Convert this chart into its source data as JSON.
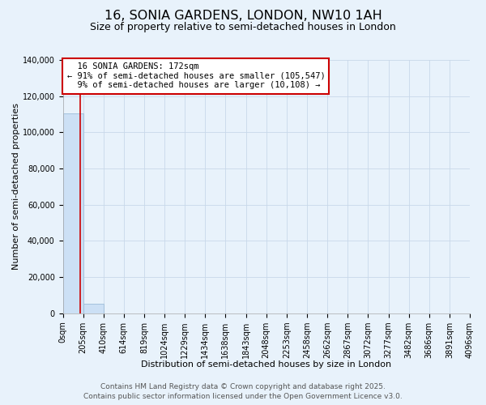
{
  "title": "16, SONIA GARDENS, LONDON, NW10 1AH",
  "subtitle": "Size of property relative to semi-detached houses in London",
  "xlabel": "Distribution of semi-detached houses by size in London",
  "ylabel": "Number of semi-detached properties",
  "annotation_title": "16 SONIA GARDENS: 172sqm",
  "annotation_line1": "← 91% of semi-detached houses are smaller (105,547)",
  "annotation_line2": "9% of semi-detached houses are larger (10,108) →",
  "property_size_sqm": 172,
  "bin_edges": [
    0,
    205,
    410,
    614,
    819,
    1024,
    1229,
    1434,
    1638,
    1843,
    2048,
    2253,
    2458,
    2662,
    2867,
    3072,
    3277,
    3482,
    3686,
    3891,
    4096
  ],
  "bin_counts": [
    110500,
    5200,
    0,
    0,
    0,
    0,
    0,
    0,
    0,
    0,
    0,
    0,
    0,
    0,
    0,
    0,
    0,
    0,
    0,
    0
  ],
  "bar_color": "#cce0f5",
  "bar_edge_color": "#9bbcd8",
  "red_line_color": "#cc0000",
  "annotation_box_color": "#ffffff",
  "annotation_box_edge": "#cc0000",
  "grid_color": "#c8d8ea",
  "background_color": "#e8f2fb",
  "footer_line1": "Contains HM Land Registry data © Crown copyright and database right 2025.",
  "footer_line2": "Contains public sector information licensed under the Open Government Licence v3.0.",
  "ylim": [
    0,
    140000
  ],
  "yticks": [
    0,
    20000,
    40000,
    60000,
    80000,
    100000,
    120000,
    140000
  ],
  "title_fontsize": 11.5,
  "subtitle_fontsize": 9,
  "xlabel_fontsize": 8,
  "ylabel_fontsize": 8,
  "tick_fontsize": 7,
  "annotation_fontsize": 7.5,
  "footer_fontsize": 6.5
}
